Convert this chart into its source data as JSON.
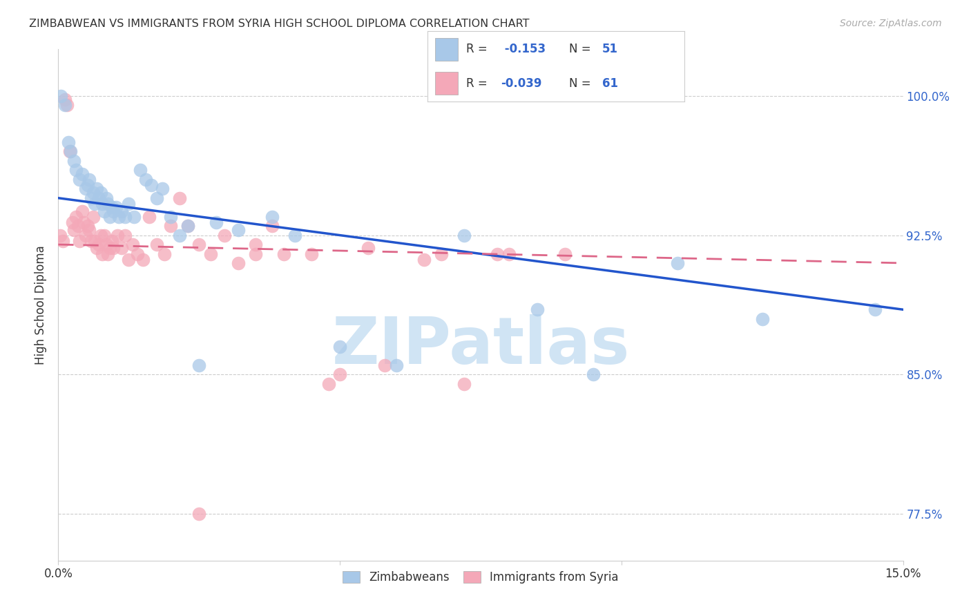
{
  "title": "ZIMBABWEAN VS IMMIGRANTS FROM SYRIA HIGH SCHOOL DIPLOMA CORRELATION CHART",
  "source": "Source: ZipAtlas.com",
  "ylabel": "High School Diploma",
  "x_min": 0.0,
  "x_max": 15.0,
  "y_min": 75.0,
  "y_max": 102.5,
  "y_ticks": [
    77.5,
    85.0,
    92.5,
    100.0
  ],
  "x_ticks": [
    0.0,
    5.0,
    10.0,
    15.0
  ],
  "x_tick_labels": [
    "0.0%",
    "",
    "",
    "15.0%"
  ],
  "y_tick_labels": [
    "77.5%",
    "85.0%",
    "92.5%",
    "100.0%"
  ],
  "zim_R": -0.153,
  "zim_N": 51,
  "syr_R": -0.039,
  "syr_N": 61,
  "zim_color": "#a8c8e8",
  "syr_color": "#f4a8b8",
  "zim_line_color": "#2255cc",
  "syr_line_color": "#dd6688",
  "watermark": "ZIPatlas",
  "watermark_color": "#d0e4f4",
  "legend_zim_label": "Zimbabweans",
  "legend_syr_label": "Immigrants from Syria",
  "zim_x": [
    0.05,
    0.12,
    0.18,
    0.22,
    0.28,
    0.32,
    0.38,
    0.42,
    0.48,
    0.52,
    0.55,
    0.58,
    0.62,
    0.65,
    0.68,
    0.72,
    0.75,
    0.78,
    0.82,
    0.85,
    0.88,
    0.92,
    0.95,
    0.98,
    1.02,
    1.08,
    1.12,
    1.18,
    1.25,
    1.35,
    1.45,
    1.55,
    1.65,
    1.75,
    1.85,
    2.0,
    2.15,
    2.3,
    2.5,
    2.8,
    3.2,
    3.8,
    4.2,
    5.0,
    6.0,
    7.2,
    8.5,
    9.5,
    11.0,
    12.5,
    14.5
  ],
  "zim_y": [
    100.0,
    99.5,
    97.5,
    97.0,
    96.5,
    96.0,
    95.5,
    95.8,
    95.0,
    95.2,
    95.5,
    94.5,
    94.8,
    94.2,
    95.0,
    94.5,
    94.8,
    94.2,
    93.8,
    94.5,
    94.2,
    93.5,
    94.0,
    93.8,
    94.0,
    93.5,
    93.8,
    93.5,
    94.2,
    93.5,
    96.0,
    95.5,
    95.2,
    94.5,
    95.0,
    93.5,
    92.5,
    93.0,
    85.5,
    93.2,
    92.8,
    93.5,
    92.5,
    86.5,
    85.5,
    92.5,
    88.5,
    85.0,
    91.0,
    88.0,
    88.5
  ],
  "syr_x": [
    0.03,
    0.08,
    0.12,
    0.16,
    0.2,
    0.25,
    0.28,
    0.32,
    0.35,
    0.38,
    0.42,
    0.45,
    0.48,
    0.52,
    0.55,
    0.58,
    0.62,
    0.65,
    0.68,
    0.72,
    0.75,
    0.78,
    0.82,
    0.85,
    0.88,
    0.92,
    0.95,
    0.98,
    1.05,
    1.12,
    1.18,
    1.25,
    1.32,
    1.4,
    1.5,
    1.62,
    1.75,
    1.88,
    2.0,
    2.15,
    2.3,
    2.5,
    2.7,
    2.95,
    3.2,
    3.5,
    3.8,
    4.5,
    5.0,
    5.8,
    6.5,
    7.2,
    8.0,
    9.0,
    3.5,
    4.0,
    4.8,
    5.5,
    6.8,
    7.8,
    2.5
  ],
  "syr_y": [
    92.5,
    92.2,
    99.8,
    99.5,
    97.0,
    93.2,
    92.8,
    93.5,
    93.0,
    92.2,
    93.8,
    93.2,
    92.5,
    93.0,
    92.8,
    92.2,
    93.5,
    92.2,
    91.8,
    92.0,
    92.5,
    91.5,
    92.5,
    92.0,
    91.5,
    91.8,
    92.2,
    91.8,
    92.5,
    91.8,
    92.5,
    91.2,
    92.0,
    91.5,
    91.2,
    93.5,
    92.0,
    91.5,
    93.0,
    94.5,
    93.0,
    92.0,
    91.5,
    92.5,
    91.0,
    91.5,
    93.0,
    91.5,
    85.0,
    85.5,
    91.2,
    84.5,
    91.5,
    91.5,
    92.0,
    91.5,
    84.5,
    91.8,
    91.5,
    91.5,
    77.5
  ]
}
